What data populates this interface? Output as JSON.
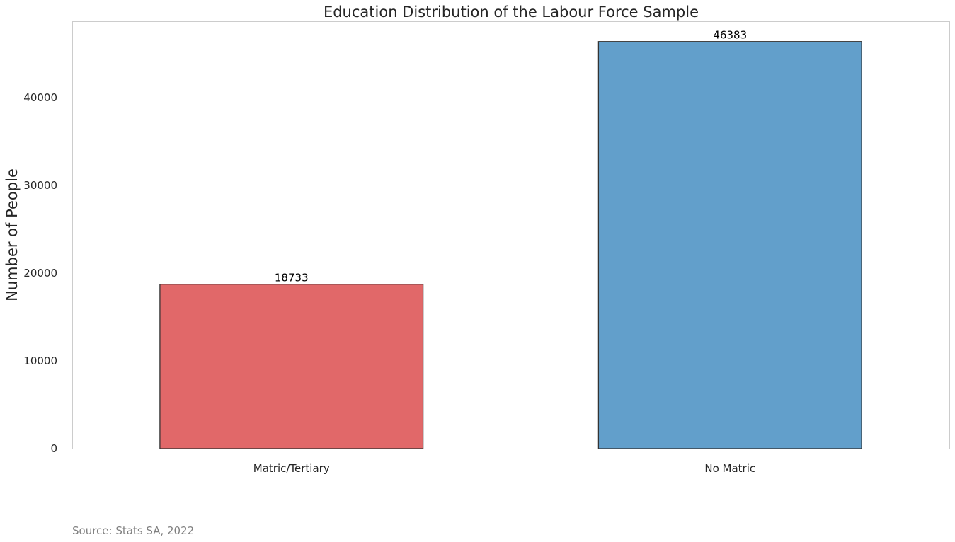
{
  "chart_data": {
    "type": "bar",
    "title": "Education Distribution of the Labour Force Sample",
    "xlabel": "",
    "ylabel": "Number of People",
    "categories": [
      "Matric/Tertiary",
      "No Matric"
    ],
    "values": [
      18733,
      46383
    ],
    "data_labels": [
      "18733",
      "46383"
    ],
    "colors": [
      "#e16869",
      "#629fcb"
    ],
    "edge_color": "#333333",
    "ylim": [
      0,
      48700
    ],
    "yticks": [
      0,
      10000,
      20000,
      30000,
      40000
    ],
    "grid": false,
    "legend": "none"
  },
  "source_note": "Source: Stats SA, 2022",
  "colors": {
    "text": "#262626",
    "source_text": "#808080",
    "frame": "#cccccc",
    "data_label": "#000000"
  }
}
